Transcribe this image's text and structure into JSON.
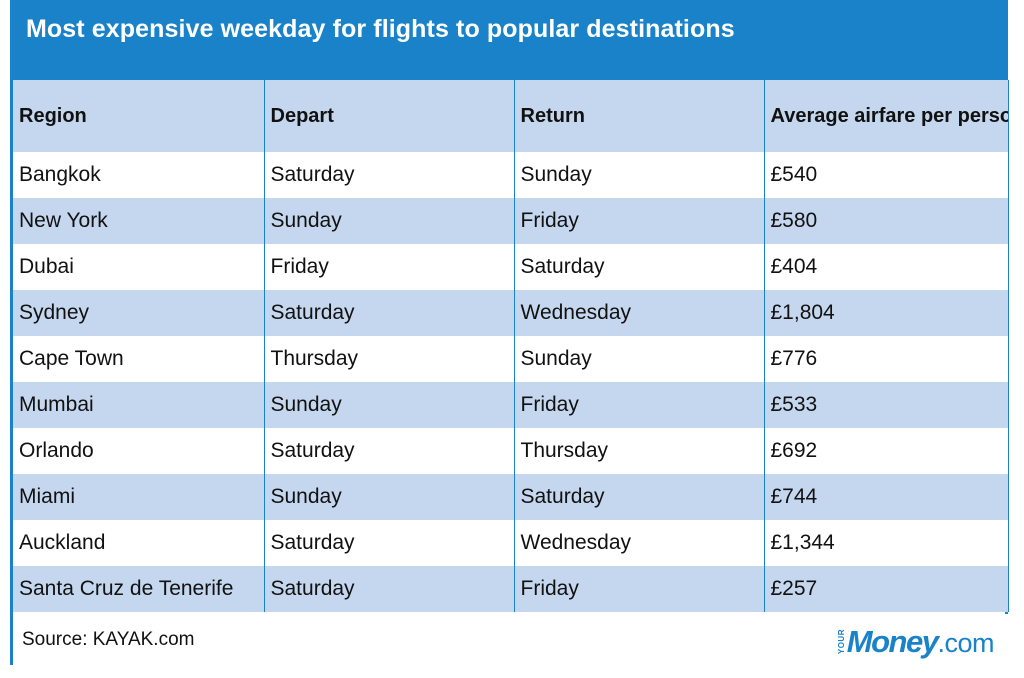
{
  "title": "Most expensive weekday for flights to popular destinations",
  "columns": [
    "Region",
    "Depart",
    "Return",
    "Average airfare per person"
  ],
  "rows": [
    {
      "region": "Bangkok",
      "depart": "Saturday",
      "return": "Sunday",
      "fare": "£540"
    },
    {
      "region": "New York",
      "depart": "Sunday",
      "return": "Friday",
      "fare": "£580"
    },
    {
      "region": "Dubai",
      "depart": "Friday",
      "return": "Saturday",
      "fare": "£404"
    },
    {
      "region": "Sydney",
      "depart": "Saturday",
      "return": "Wednesday",
      "fare": "£1,804"
    },
    {
      "region": "Cape Town",
      "depart": "Thursday",
      "return": "Sunday",
      "fare": "£776"
    },
    {
      "region": "Mumbai",
      "depart": "Sunday",
      "return": "Friday",
      "fare": "£533"
    },
    {
      "region": "Orlando",
      "depart": "Saturday",
      "return": "Thursday",
      "fare": "£692"
    },
    {
      "region": "Miami",
      "depart": "Sunday",
      "return": "Saturday",
      "fare": "£744"
    },
    {
      "region": "Auckland",
      "depart": "Saturday",
      "return": "Wednesday",
      "fare": "£1,344"
    },
    {
      "region": "Santa Cruz de Tenerife",
      "depart": "Saturday",
      "return": "Friday",
      "fare": "£257"
    }
  ],
  "footer": {
    "source": "Source: KAYAK.com",
    "logo": {
      "your": "YOUR",
      "money": "Money",
      "dotcom": ".com"
    }
  },
  "colors": {
    "accent": "#1a82c8",
    "stripe": "#c5d7ee"
  }
}
